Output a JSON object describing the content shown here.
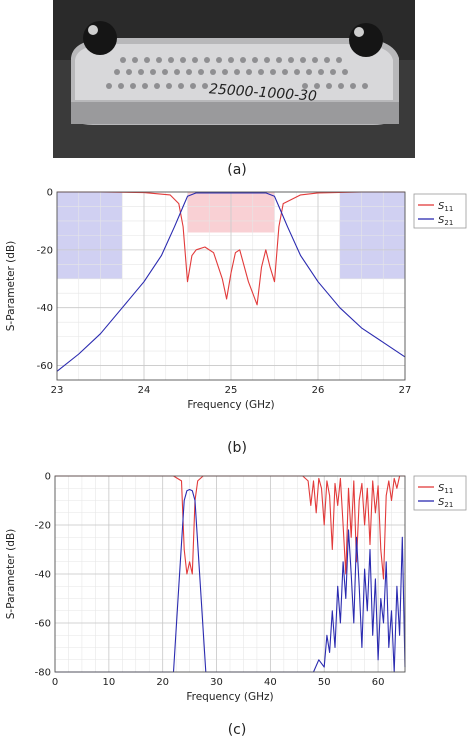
{
  "panels": {
    "a": {
      "caption": "(a)",
      "photo_label": "25000-1000-30"
    },
    "b": {
      "caption": "(b)"
    },
    "c": {
      "caption": "(c)"
    }
  },
  "colors": {
    "s11": "#e23b3b",
    "s21": "#2b2bb0",
    "stopband": "#c8c8f0",
    "passband": "#f8c8cc"
  },
  "chart_data": [
    {
      "type": "line",
      "xlabel": "Frequency (GHz)",
      "ylabel": "S-Parameter (dB)",
      "xlim": [
        23,
        27
      ],
      "ylim": [
        -65,
        0
      ],
      "xticks": [
        "23",
        "24",
        "25",
        "26",
        "27"
      ],
      "yticks": [
        "0",
        "-20",
        "-40",
        "-60"
      ],
      "grid": true,
      "legend": "right-top",
      "shaded_regions": [
        {
          "x": [
            23.0,
            23.75
          ],
          "y": [
            -30,
            0
          ],
          "kind": "stopband"
        },
        {
          "x": [
            24.5,
            25.5
          ],
          "y": [
            -14,
            0
          ],
          "kind": "passband"
        },
        {
          "x": [
            26.25,
            27.0
          ],
          "y": [
            -30,
            0
          ],
          "kind": "stopband"
        }
      ],
      "series": [
        {
          "name": "S11",
          "label_main": "S",
          "label_sub": "11",
          "color": "#e23b3b",
          "x": [
            23.0,
            23.5,
            24.0,
            24.3,
            24.4,
            24.45,
            24.5,
            24.55,
            24.6,
            24.7,
            24.8,
            24.9,
            24.95,
            25.0,
            25.05,
            25.1,
            25.2,
            25.3,
            25.35,
            25.4,
            25.45,
            25.5,
            25.55,
            25.6,
            25.8,
            26.0,
            26.5,
            27.0
          ],
          "y": [
            0,
            0,
            -0.2,
            -1,
            -4,
            -12,
            -31,
            -22,
            -20,
            -19,
            -21,
            -30,
            -37,
            -28,
            -21,
            -20,
            -31,
            -39,
            -26,
            -20,
            -26,
            -31,
            -12,
            -4,
            -1,
            -0.3,
            0,
            0
          ]
        },
        {
          "name": "S21",
          "label_main": "S",
          "label_sub": "21",
          "color": "#2b2bb0",
          "x": [
            23.0,
            23.25,
            23.5,
            23.75,
            24.0,
            24.2,
            24.35,
            24.45,
            24.5,
            24.6,
            25.0,
            25.4,
            25.5,
            25.55,
            25.65,
            25.8,
            26.0,
            26.25,
            26.5,
            26.75,
            27.0
          ],
          "y": [
            -62,
            -56,
            -49,
            -40,
            -31,
            -22,
            -12,
            -5,
            -1.5,
            -0.3,
            -0.3,
            -0.3,
            -1.5,
            -5,
            -12,
            -22,
            -31,
            -40,
            -47,
            -52,
            -57
          ]
        }
      ]
    },
    {
      "type": "line",
      "xlabel": "Frequency (GHz)",
      "ylabel": "S-Parameter (dB)",
      "xlim": [
        0,
        65
      ],
      "ylim": [
        -80,
        0
      ],
      "xticks": [
        "0",
        "10",
        "20",
        "30",
        "40",
        "50",
        "60"
      ],
      "yticks": [
        "0",
        "-20",
        "-40",
        "-60",
        "-80"
      ],
      "grid": true,
      "legend": "right-top",
      "series": [
        {
          "name": "S11",
          "label_main": "S",
          "label_sub": "11",
          "color": "#e23b3b",
          "x": [
            0,
            22,
            23.5,
            24,
            24.5,
            25,
            25.5,
            26,
            26.5,
            27.5,
            46,
            47,
            47.5,
            48,
            48.5,
            49,
            49.5,
            50,
            50.5,
            51,
            51.5,
            52,
            52.5,
            53,
            53.5,
            54,
            54.5,
            55,
            55.5,
            56,
            56.5,
            57,
            57.5,
            58,
            58.5,
            59,
            59.5,
            60,
            60.5,
            61,
            61.5,
            62,
            62.5,
            63,
            63.5,
            64,
            65
          ],
          "y": [
            0,
            0,
            -2,
            -30,
            -40,
            -35,
            -40,
            -10,
            -2,
            0,
            0,
            -2,
            -12,
            -2,
            -15,
            -1,
            -5,
            -20,
            -2,
            -8,
            -30,
            -3,
            -12,
            -1,
            -20,
            -40,
            -5,
            -25,
            -2,
            -35,
            -10,
            -3,
            -20,
            -5,
            -28,
            -2,
            -15,
            -4,
            -30,
            -42,
            -8,
            -2,
            -10,
            -1,
            -5,
            0,
            0
          ]
        },
        {
          "name": "S21",
          "label_main": "S",
          "label_sub": "21",
          "color": "#2b2bb0",
          "x": [
            0,
            22,
            23,
            24,
            24.5,
            25,
            25.5,
            26,
            27,
            28,
            48,
            49,
            50,
            50.5,
            51,
            51.5,
            52,
            52.5,
            53,
            53.5,
            54,
            54.5,
            55,
            55.5,
            56,
            56.5,
            57,
            57.5,
            58,
            58.5,
            59,
            59.5,
            60,
            60.5,
            61,
            61.5,
            62,
            62.5,
            63,
            63.5,
            64,
            64.5,
            65
          ],
          "y": [
            -80,
            -80,
            -45,
            -10,
            -6,
            -5.5,
            -6,
            -10,
            -45,
            -80,
            -80,
            -75,
            -78,
            -65,
            -72,
            -55,
            -70,
            -45,
            -60,
            -35,
            -50,
            -22,
            -40,
            -60,
            -25,
            -45,
            -70,
            -38,
            -55,
            -30,
            -65,
            -42,
            -75,
            -50,
            -60,
            -35,
            -70,
            -55,
            -80,
            -45,
            -65,
            -25,
            -78
          ]
        }
      ]
    }
  ]
}
